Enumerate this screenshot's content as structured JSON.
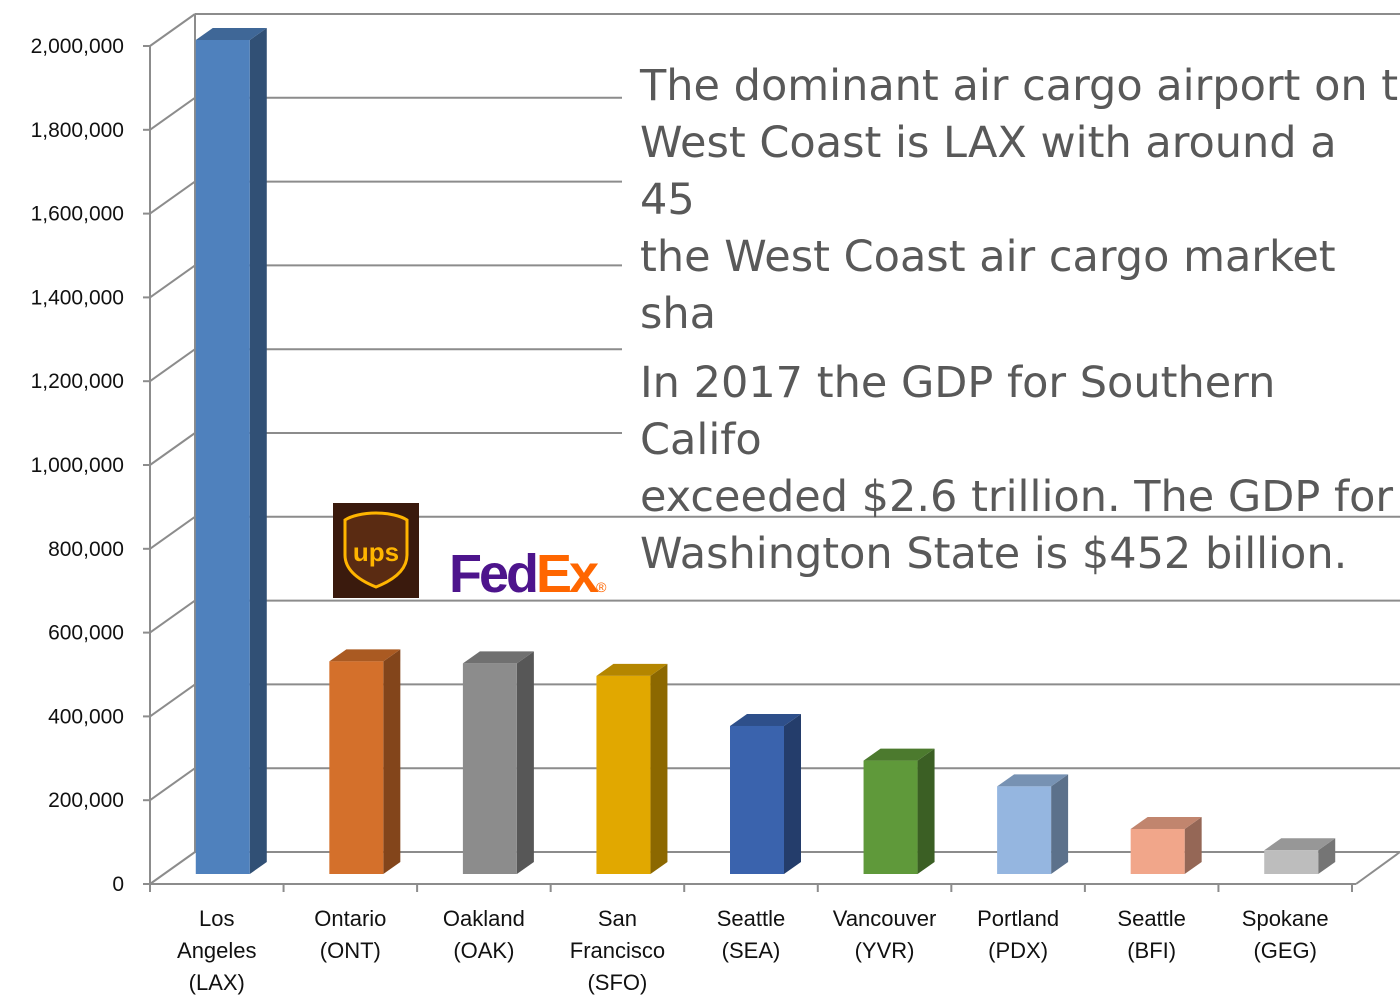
{
  "chart_data": {
    "type": "bar",
    "title": "",
    "xlabel": "",
    "ylabel": "",
    "ylim": [
      0,
      2000000
    ],
    "yticks": [
      0,
      200000,
      400000,
      600000,
      800000,
      1000000,
      1200000,
      1400000,
      1600000,
      1800000,
      2000000
    ],
    "ytick_labels": [
      "0",
      "200,000",
      "400,000",
      "600,000",
      "800,000",
      "1,000,000",
      "1,200,000",
      "1,400,000",
      "1,600,000",
      "1,800,000",
      "2,000,000"
    ],
    "grid": true,
    "categories": [
      "Los\nAngeles\n(LAX)",
      "Ontario\n(ONT)",
      "Oakland\n(OAK)",
      "San\nFrancisco\n(SFO)",
      "Seattle\n(SEA)",
      "Vancouver\n(YVR)",
      "Portland\n(PDX)",
      "Seattle\n(BFI)",
      "Spokane\n(GEG)"
    ],
    "values": [
      2000000,
      510000,
      505000,
      475000,
      355000,
      272000,
      210000,
      108000,
      57000
    ],
    "colors": [
      "#4f81bd",
      "#d4702b",
      "#8c8c8c",
      "#e1a800",
      "#3a63ad",
      "#5f993a",
      "#95b6e0",
      "#f1a68a",
      "#bdbdbd"
    ]
  },
  "annotation": {
    "paragraph_1": "The dominant air cargo airport on t\nWest Coast is LAX with around a 45\nthe West Coast air cargo market sha",
    "paragraph_2": "In 2017 the GDP for Southern Califo\nexceeded $2.6 trillion. The GDP for\nWashington State is $452 billion."
  },
  "logos": {
    "ups": "ups",
    "fedex_fed": "Fed",
    "fedex_ex": "Ex",
    "fedex_mark": "®",
    "ups_color": "#ffb500",
    "fedex_purple": "#4d148c",
    "fedex_orange": "#ff6600"
  }
}
